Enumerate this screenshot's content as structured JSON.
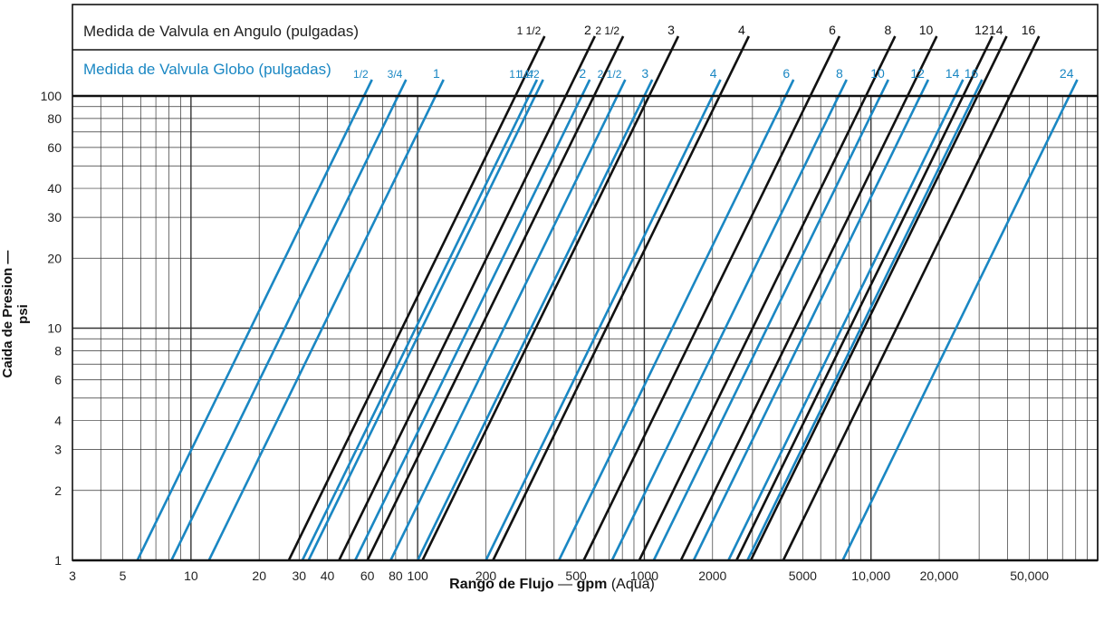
{
  "header": {
    "angle_title": "Medida de Valvula en Angulo (pulgadas)",
    "globe_title": "Medida de Valvula Globo (pulgadas)"
  },
  "axis": {
    "ylabel": "Caida de Presion — psi",
    "xlabel_bold": "Rango de Flujo",
    "xlabel_dash": " — ",
    "xlabel_unit": "gpm",
    "xlabel_paren": " (Aqua)"
  },
  "colors": {
    "angle": "#111111",
    "globe": "#1a87c3",
    "grid": "#333333"
  },
  "chart_data": {
    "type": "line",
    "x_scale": "log",
    "y_scale": "log",
    "xlim": [
      3,
      100000
    ],
    "ylim": [
      1,
      100
    ],
    "grid": true,
    "x_ticks": [
      {
        "v": 3,
        "label": "3"
      },
      {
        "v": 5,
        "label": "5"
      },
      {
        "v": 10,
        "label": "10"
      },
      {
        "v": 20,
        "label": "20"
      },
      {
        "v": 30,
        "label": "30"
      },
      {
        "v": 40,
        "label": "40"
      },
      {
        "v": 60,
        "label": "60"
      },
      {
        "v": 80,
        "label": "80"
      },
      {
        "v": 100,
        "label": "100"
      },
      {
        "v": 200,
        "label": "200"
      },
      {
        "v": 500,
        "label": "500"
      },
      {
        "v": 1000,
        "label": "1000"
      },
      {
        "v": 2000,
        "label": "2000"
      },
      {
        "v": 5000,
        "label": "5000"
      },
      {
        "v": 10000,
        "label": "10,000"
      },
      {
        "v": 20000,
        "label": "20,000"
      },
      {
        "v": 50000,
        "label": "50,000"
      }
    ],
    "y_ticks": [
      {
        "v": 1,
        "label": "1"
      },
      {
        "v": 2,
        "label": "2"
      },
      {
        "v": 3,
        "label": "3"
      },
      {
        "v": 4,
        "label": "4"
      },
      {
        "v": 6,
        "label": "6"
      },
      {
        "v": 8,
        "label": "8"
      },
      {
        "v": 10,
        "label": "10"
      },
      {
        "v": 20,
        "label": "20"
      },
      {
        "v": 30,
        "label": "30"
      },
      {
        "v": 40,
        "label": "40"
      },
      {
        "v": 60,
        "label": "60"
      },
      {
        "v": 80,
        "label": "80"
      },
      {
        "v": 100,
        "label": "100"
      }
    ],
    "series": [
      {
        "group": "globe",
        "name": "1/2",
        "flow_at_1psi": 5.8,
        "flow_at_100psi": 58
      },
      {
        "group": "globe",
        "name": "3/4",
        "flow_at_1psi": 8.2,
        "flow_at_100psi": 82
      },
      {
        "group": "globe",
        "name": "1",
        "flow_at_1psi": 12,
        "flow_at_100psi": 120
      },
      {
        "group": "globe",
        "name": "1 1/4",
        "flow_at_1psi": 31,
        "flow_at_100psi": 310
      },
      {
        "group": "globe",
        "name": "1 1/2",
        "flow_at_1psi": 33,
        "flow_at_100psi": 330
      },
      {
        "group": "globe",
        "name": "2",
        "flow_at_1psi": 53,
        "flow_at_100psi": 530
      },
      {
        "group": "globe",
        "name": "2 1/2",
        "flow_at_1psi": 76,
        "flow_at_100psi": 760
      },
      {
        "group": "globe",
        "name": "3",
        "flow_at_1psi": 100,
        "flow_at_100psi": 1000
      },
      {
        "group": "globe",
        "name": "4",
        "flow_at_1psi": 200,
        "flow_at_100psi": 2000
      },
      {
        "group": "globe",
        "name": "6",
        "flow_at_1psi": 420,
        "flow_at_100psi": 4200
      },
      {
        "group": "globe",
        "name": "8",
        "flow_at_1psi": 720,
        "flow_at_100psi": 7200
      },
      {
        "group": "globe",
        "name": "10",
        "flow_at_1psi": 1100,
        "flow_at_100psi": 11000
      },
      {
        "group": "globe",
        "name": "12",
        "flow_at_1psi": 1650,
        "flow_at_100psi": 16500
      },
      {
        "group": "globe",
        "name": "14",
        "flow_at_1psi": 2350,
        "flow_at_100psi": 23500
      },
      {
        "group": "globe",
        "name": "16",
        "flow_at_1psi": 2850,
        "flow_at_100psi": 28500
      },
      {
        "group": "globe",
        "name": "24",
        "flow_at_1psi": 7500,
        "flow_at_100psi": 75000
      },
      {
        "group": "angle",
        "name": "1 1/2",
        "flow_at_1psi": 27,
        "flow_at_100psi": 270
      },
      {
        "group": "angle",
        "name": "2",
        "flow_at_1psi": 45,
        "flow_at_100psi": 450
      },
      {
        "group": "angle",
        "name": "2 1/2",
        "flow_at_1psi": 60,
        "flow_at_100psi": 600
      },
      {
        "group": "angle",
        "name": "3",
        "flow_at_1psi": 105,
        "flow_at_100psi": 1050
      },
      {
        "group": "angle",
        "name": "4",
        "flow_at_1psi": 215,
        "flow_at_100psi": 2150
      },
      {
        "group": "angle",
        "name": "6",
        "flow_at_1psi": 540,
        "flow_at_100psi": 5400
      },
      {
        "group": "angle",
        "name": "8",
        "flow_at_1psi": 950,
        "flow_at_100psi": 9500
      },
      {
        "group": "angle",
        "name": "10",
        "flow_at_1psi": 1450,
        "flow_at_100psi": 14500
      },
      {
        "group": "angle",
        "name": "12",
        "flow_at_1psi": 2550,
        "flow_at_100psi": 25500
      },
      {
        "group": "angle",
        "name": "14",
        "flow_at_1psi": 2950,
        "flow_at_100psi": 29500
      },
      {
        "group": "angle",
        "name": "16",
        "flow_at_1psi": 4100,
        "flow_at_100psi": 41000
      }
    ]
  }
}
